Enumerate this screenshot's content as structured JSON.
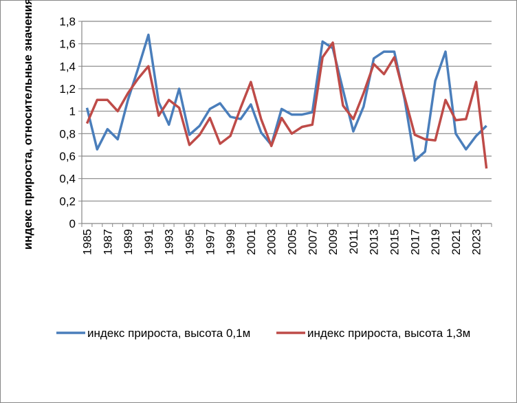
{
  "chart_data": {
    "type": "line",
    "title": "",
    "xlabel": "",
    "ylabel": "индекс прироста, относительные значения",
    "ylim": [
      0,
      1.8
    ],
    "ytick_step": 0.2,
    "yticks": [
      "0",
      "0,2",
      "0,4",
      "0,6",
      "0,8",
      "1",
      "1,2",
      "1,4",
      "1,6",
      "1,8"
    ],
    "grid": true,
    "legend_position": "bottom",
    "x": [
      1985,
      1986,
      1987,
      1988,
      1989,
      1990,
      1991,
      1992,
      1993,
      1994,
      1995,
      1996,
      1997,
      1998,
      1999,
      2000,
      2001,
      2002,
      2003,
      2004,
      2005,
      2006,
      2007,
      2008,
      2009,
      2010,
      2011,
      2012,
      2013,
      2014,
      2015,
      2016,
      2017,
      2018,
      2019,
      2020,
      2021,
      2022,
      2023,
      2024
    ],
    "xticks": [
      "1985",
      "1987",
      "1989",
      "1991",
      "1993",
      "1995",
      "1997",
      "1999",
      "2001",
      "2003",
      "2005",
      "2007",
      "2009",
      "2011",
      "2013",
      "2015",
      "2017",
      "2019",
      "2021",
      "2023"
    ],
    "series": [
      {
        "name": "индекс прироста, высота 0,1м",
        "color": "#4a7ebb",
        "values": [
          1.03,
          0.66,
          0.84,
          0.75,
          1.1,
          1.38,
          1.68,
          1.08,
          0.88,
          1.2,
          0.79,
          0.87,
          1.02,
          1.07,
          0.95,
          0.93,
          1.06,
          0.81,
          0.7,
          1.02,
          0.97,
          0.97,
          0.99,
          1.62,
          1.56,
          1.19,
          0.82,
          1.04,
          1.47,
          1.53,
          1.53,
          1.11,
          0.56,
          0.64,
          1.27,
          1.53,
          0.8,
          0.66,
          0.78,
          0.87
        ]
      },
      {
        "name": "индекс прироста, высота 1,3м",
        "color": "#be4b48",
        "values": [
          0.89,
          1.1,
          1.1,
          1.0,
          1.16,
          1.29,
          1.4,
          0.96,
          1.1,
          1.03,
          0.7,
          0.79,
          0.94,
          0.71,
          0.78,
          1.03,
          1.26,
          0.93,
          0.69,
          0.94,
          0.8,
          0.86,
          0.88,
          1.48,
          1.61,
          1.05,
          0.93,
          1.16,
          1.42,
          1.33,
          1.48,
          1.13,
          0.79,
          0.75,
          0.74,
          1.1,
          0.92,
          0.93,
          1.26,
          0.49
        ]
      }
    ]
  }
}
